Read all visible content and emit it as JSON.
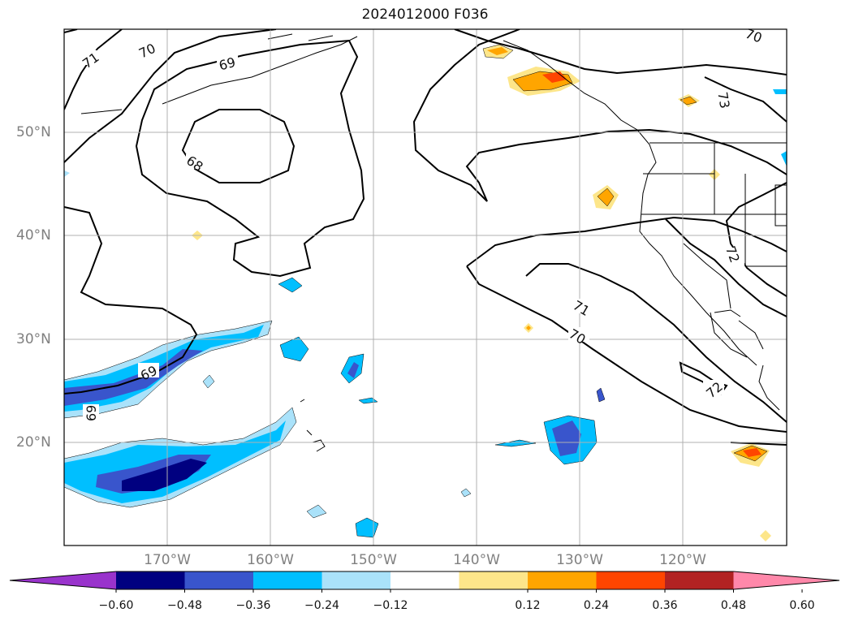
{
  "title": "2024012000 F036",
  "lat_labels": [
    "50°N",
    "40°N",
    "30°N",
    "20°N"
  ],
  "lon_labels": [
    "170°W",
    "160°W",
    "150°W",
    "140°W",
    "130°W",
    "120°W"
  ],
  "colorbar": {
    "ticks": [
      "−0.60",
      "−0.48",
      "−0.36",
      "−0.24",
      "−0.12",
      "0.12",
      "0.24",
      "0.36",
      "0.48",
      "0.60"
    ],
    "colors": [
      "#9933cc",
      "#000080",
      "#3955cc",
      "#00bfff",
      "#aae2fa",
      "#ffffff",
      "#fde68a",
      "#ffa500",
      "#ff4500",
      "#b22222",
      "#ff88aa"
    ]
  },
  "contour_labels": [
    "71",
    "70",
    "69",
    "68",
    "70",
    "73",
    "71",
    "70",
    "72",
    "72",
    "69",
    "69"
  ]
}
